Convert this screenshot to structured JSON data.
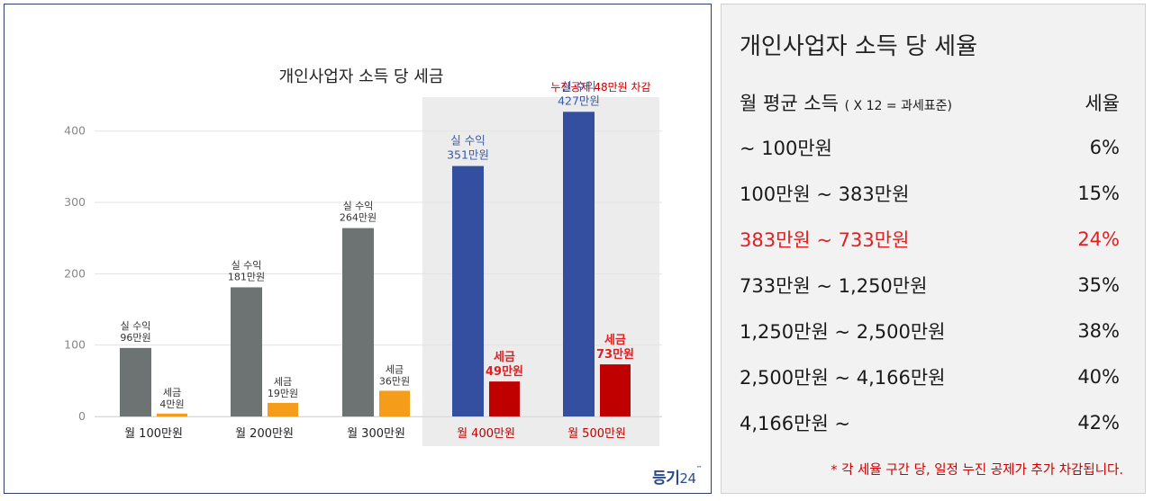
{
  "chart_data": {
    "type": "bar",
    "title": "개인사업자 소득 당 세금",
    "annotation": "누진공제 48만원 차감",
    "categories": [
      "월 100만원",
      "월 200만원",
      "월 300만원",
      "월 400만원",
      "월 500만원"
    ],
    "highlighted_categories": [
      3,
      4
    ],
    "series": [
      {
        "name": "실 수익",
        "values": [
          96,
          181,
          264,
          351,
          427
        ],
        "labels": [
          "96만원",
          "181만원",
          "264만원",
          "351만원",
          "427만원"
        ]
      },
      {
        "name": "세금",
        "values": [
          4,
          19,
          36,
          49,
          73
        ],
        "labels": [
          "4만원",
          "19만원",
          "36만원",
          "49만원",
          "73만원"
        ]
      }
    ],
    "yticks": [
      0,
      100,
      200,
      300,
      400
    ],
    "ylim": [
      0,
      440
    ],
    "grid": true,
    "colors": {
      "income": "#6d7373",
      "tax": "#f59c1a",
      "income_highlight": "#344f9f",
      "tax_highlight": "#c00000",
      "highlight_bg": "#ececec",
      "label_normal": "#333333",
      "label_income_highlight": "#3a5aa8",
      "label_tax_highlight": "#e02020",
      "axis_text": "#888888"
    }
  },
  "brand": {
    "text": "등기",
    "num": "24",
    "tm": "™"
  },
  "tax_table": {
    "title": "개인사업자 소득 당 세율",
    "header": {
      "left": "월 평균 소득",
      "left_sub": "( X 12 = 과세표준)",
      "right": "세율"
    },
    "rows": [
      {
        "range": "~ 100만원",
        "rate": "6%"
      },
      {
        "range": "100만원 ~ 383만원",
        "rate": "15%"
      },
      {
        "range": "383만원 ~ 733만원",
        "rate": "24%",
        "highlight": true
      },
      {
        "range": "733만원 ~ 1,250만원",
        "rate": "35%"
      },
      {
        "range": "1,250만원 ~ 2,500만원",
        "rate": "38%"
      },
      {
        "range": "2,500만원 ~ 4,166만원",
        "rate": "40%"
      },
      {
        "range": "4,166만원 ~",
        "rate": "42%"
      }
    ],
    "note": "* 각 세율 구간 당, 일정 누진 공제가 추가 차감됩니다."
  }
}
